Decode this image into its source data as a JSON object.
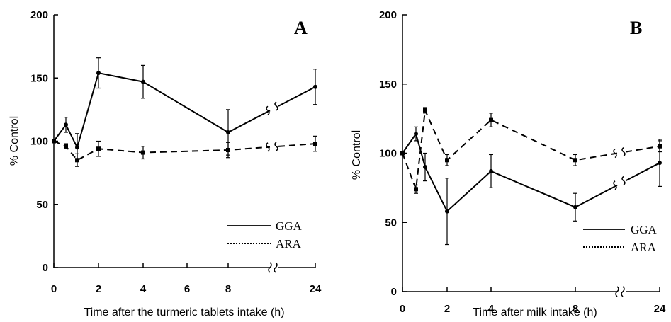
{
  "chart_data": [
    {
      "type": "line",
      "panel_label": "A",
      "xlabel": "Time after the turmeric tablets intake (h)",
      "ylabel": "% Control",
      "ylim": [
        0,
        200
      ],
      "yticks": [
        "0",
        "50",
        "100",
        "150",
        "200"
      ],
      "xticks": [
        "0",
        "2",
        "4",
        "6",
        "8",
        "24"
      ],
      "x_axis_break": "between 8 and 24",
      "grid": false,
      "legend_position": "bottom-right",
      "series": [
        {
          "name": "GGA",
          "style": "solid",
          "x": [
            0,
            0.5,
            1,
            2,
            4,
            8,
            24
          ],
          "values": [
            100,
            113,
            95,
            154,
            147,
            107,
            143
          ],
          "error": [
            0,
            6,
            11,
            12,
            13,
            18,
            14
          ]
        },
        {
          "name": "ARA",
          "style": "dashed",
          "x": [
            0,
            0.5,
            1,
            2,
            4,
            8,
            24
          ],
          "values": [
            100,
            96,
            85,
            94,
            91,
            93,
            98
          ],
          "error": [
            0,
            2,
            5,
            6,
            5,
            6,
            6
          ]
        }
      ]
    },
    {
      "type": "line",
      "panel_label": "B",
      "xlabel": "Time after milk intake (h)",
      "ylabel": "% Control",
      "ylim": [
        0,
        200
      ],
      "yticks": [
        "0",
        "50",
        "100",
        "150",
        "200"
      ],
      "xticks": [
        "0",
        "2",
        "4",
        "8",
        "24"
      ],
      "x_axis_break": "between 8 and 24",
      "grid": false,
      "legend_position": "bottom-right",
      "series": [
        {
          "name": "GGA",
          "style": "solid",
          "x": [
            0,
            0.5,
            1,
            2,
            4,
            8,
            24
          ],
          "values": [
            100,
            114,
            90,
            58,
            87,
            61,
            93
          ],
          "error": [
            0,
            5,
            10,
            24,
            12,
            10,
            17
          ]
        },
        {
          "name": "ARA",
          "style": "dashed",
          "x": [
            0,
            0.5,
            1,
            2,
            4,
            8,
            24
          ],
          "values": [
            100,
            74,
            131,
            95,
            124,
            95,
            105
          ],
          "error": [
            0,
            3,
            2,
            4,
            5,
            4,
            4
          ]
        }
      ]
    }
  ]
}
